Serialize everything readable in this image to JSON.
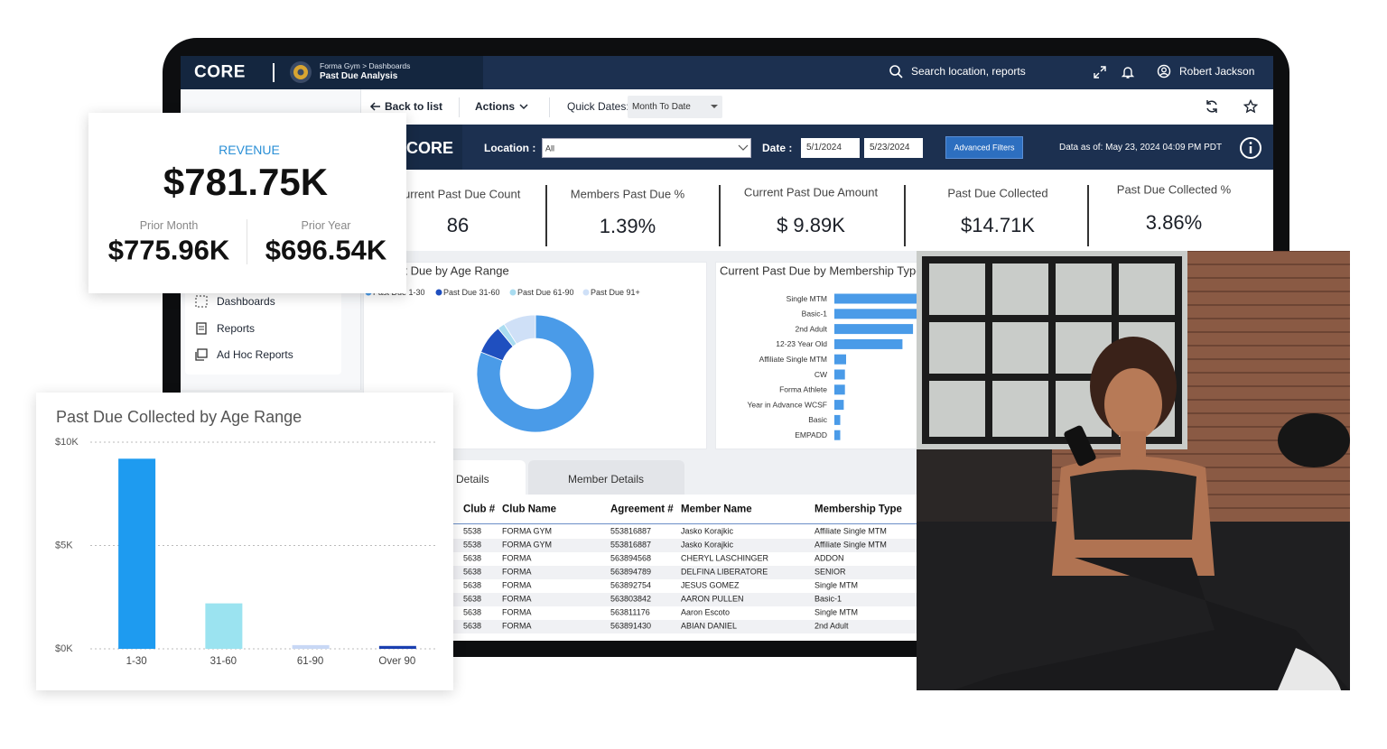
{
  "nav": {
    "logo": "CORE",
    "breadcrumb": "Forma Gym > Dashboards",
    "page_title": "Past Due Analysis",
    "search": "Search location, reports",
    "user": "Robert Jackson"
  },
  "toolbar": {
    "back": "Back to list",
    "actions": "Actions",
    "quick_dates_label": "Quick Dates:",
    "quick_dates_value": "Month To Date"
  },
  "filters": {
    "logo": "CORE",
    "location_label": "Location :",
    "location_value": "All",
    "date_label": "Date :",
    "date_from": "5/1/2024",
    "date_to": "5/23/2024",
    "advanced": "Advanced Filters",
    "data_as_of": "Data as of: May 23, 2024 04:09 PM PDT"
  },
  "kpis": [
    {
      "label": "Current Past Due Count",
      "value": "86"
    },
    {
      "label": "Members Past Due %",
      "value": "1.39%"
    },
    {
      "label": "Current Past Due Amount",
      "value": "$ 9.89K"
    },
    {
      "label": "Past Due Collected",
      "value": "$14.71K"
    },
    {
      "label": "Past Due Collected %",
      "value": "3.86%"
    }
  ],
  "sidebar": {
    "items": [
      "Dashboards",
      "Reports",
      "Ad Hoc Reports"
    ]
  },
  "revenue_card": {
    "title": "REVENUE",
    "value": "$781.75K",
    "prior_month_label": "Prior Month",
    "prior_month_value": "$775.96K",
    "prior_year_label": "Prior Year",
    "prior_year_value": "$696.54K"
  },
  "tabs": [
    "Details",
    "Member Details"
  ],
  "table": {
    "columns": [
      "Club #",
      "Club Name",
      "Agreement #",
      "Member Name",
      "Membership Type"
    ],
    "rows": [
      [
        "5538",
        "FORMA GYM",
        "553816887",
        "Jasko Korajkic",
        "Affiliate Single MTM"
      ],
      [
        "5538",
        "FORMA GYM",
        "553816887",
        "Jasko Korajkic",
        "Affiliate Single MTM"
      ],
      [
        "5638",
        "FORMA",
        "563894568",
        "CHERYL LASCHINGER",
        "ADDON"
      ],
      [
        "5638",
        "FORMA",
        "563894789",
        "DELFINA LIBERATORE",
        "SENIOR"
      ],
      [
        "5638",
        "FORMA",
        "563892754",
        "JESUS GOMEZ",
        "Single MTM"
      ],
      [
        "5638",
        "FORMA",
        "563803842",
        "AARON PULLEN",
        "Basic-1"
      ],
      [
        "5638",
        "FORMA",
        "563811176",
        "Aaron Escoto",
        "Single MTM"
      ],
      [
        "5638",
        "FORMA",
        "563891430",
        "ABIAN DANIEL",
        "2nd Adult"
      ]
    ]
  },
  "chart_data": [
    {
      "type": "donut",
      "title": "Current Past Due by Age Range",
      "categories": [
        "Past Due 1-30",
        "Past Due 31-60",
        "Past Due 61-90",
        "Past Due 91+"
      ],
      "values": [
        81,
        8,
        2,
        9
      ],
      "colors": [
        "#4a9be8",
        "#1f4fbf",
        "#a9dcf0",
        "#cfe0f7"
      ]
    },
    {
      "type": "hbar",
      "title": "Current Past Due by Membership Type",
      "categories": [
        "Single MTM",
        "Basic-1",
        "2nd Adult",
        "12-23 Year Old",
        "Affiliate Single MTM",
        "CW",
        "Forma Athlete",
        "Year in Advance WCSF",
        "Basic",
        "EMPADD"
      ],
      "values": [
        100,
        98,
        67,
        58,
        10,
        9,
        9,
        8,
        5,
        5
      ],
      "color": "#4a9be8"
    },
    {
      "type": "bar",
      "title": "Past Due Collected by Age Range",
      "categories": [
        "1-30",
        "31-60",
        "61-90",
        "Over 90"
      ],
      "values": [
        9200,
        2200,
        180,
        140
      ],
      "colors": [
        "#1e9bf0",
        "#9be3f0",
        "#c8d8f5",
        "#1a3fb0"
      ],
      "ylim": [
        0,
        10000
      ],
      "yticks": [
        {
          "value": 0,
          "label": "$0K"
        },
        {
          "value": 5000,
          "label": "$5K"
        },
        {
          "value": 10000,
          "label": "$10K"
        }
      ],
      "grid": true
    }
  ]
}
